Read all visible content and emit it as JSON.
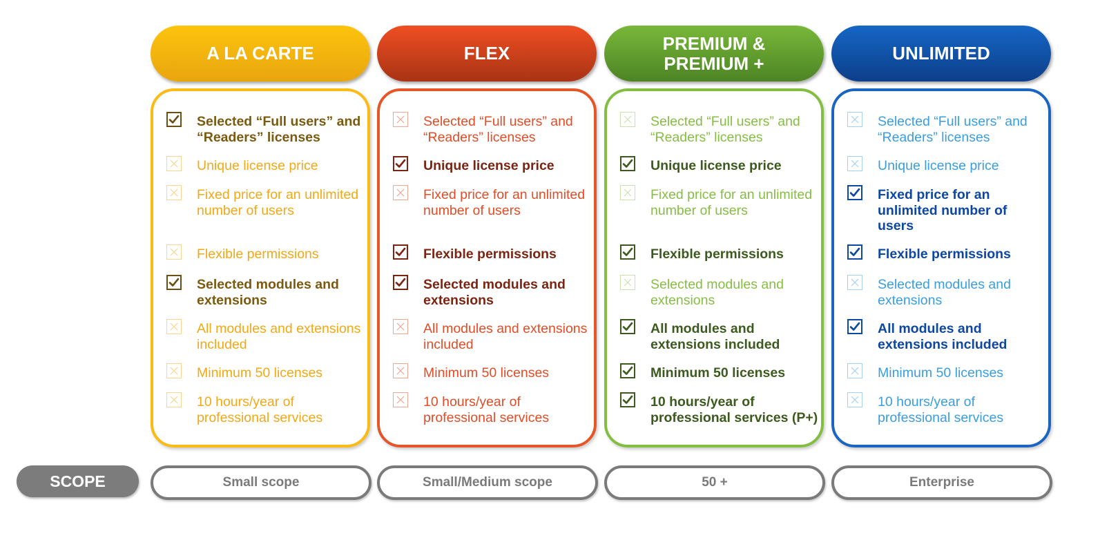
{
  "scope_label": "SCOPE",
  "plans": [
    {
      "title": "A LA CARTE",
      "scope": "Small scope",
      "colors": {
        "header_top": "#fdc40e",
        "header_bottom": "#e8a50e",
        "border": "#fbba14",
        "on_text": "#7a5a10",
        "on_box": "#6b4f12",
        "off_text": "#f3a815",
        "off_box": "#f7c86a"
      },
      "features": [
        {
          "text": "Selected “Full users” and “Readers” licenses",
          "included": true
        },
        {
          "text": "Unique license price",
          "included": false
        },
        {
          "text": "Fixed price for an unlimited number of users",
          "included": false
        },
        {
          "text": "Flexible permissions",
          "included": false
        },
        {
          "text": "Selected modules and extensions",
          "included": true
        },
        {
          "text": "All modules and extensions included",
          "included": false
        },
        {
          "text": "Minimum 50 licenses",
          "included": false
        },
        {
          "text": "10 hours/year of professional services",
          "included": false
        }
      ]
    },
    {
      "title": "FLEX",
      "scope": "Small/Medium scope",
      "colors": {
        "header_top": "#f04e23",
        "header_bottom": "#a83314",
        "border": "#e65527",
        "on_text": "#7b2412",
        "on_box": "#7b2412",
        "off_text": "#e24c26",
        "off_box": "#ee8a6e"
      },
      "features": [
        {
          "text": "Selected “Full users” and “Readers” licenses",
          "included": false
        },
        {
          "text": "Unique license price",
          "included": true
        },
        {
          "text": "Fixed price for an unlimited number of users",
          "included": false
        },
        {
          "text": "Flexible permissions",
          "included": true
        },
        {
          "text": "Selected modules and extensions",
          "included": true
        },
        {
          "text": "All modules and extensions included",
          "included": false
        },
        {
          "text": "Minimum 50 licenses",
          "included": false
        },
        {
          "text": "10 hours/year of professional services",
          "included": false
        }
      ]
    },
    {
      "title": "PREMIUM &\nPREMIUM +",
      "scope": "50 +",
      "colors": {
        "header_top": "#79b83a",
        "header_bottom": "#4c8424",
        "border": "#84be41",
        "on_text": "#3d5a1e",
        "on_box": "#3d5a1e",
        "off_text": "#86bd45",
        "off_box": "#b6d994"
      },
      "features": [
        {
          "text": "Selected “Full users” and “Readers” licenses",
          "included": false
        },
        {
          "text": "Unique license price",
          "included": true
        },
        {
          "text": "Fixed price for an unlimited number of users",
          "included": false
        },
        {
          "text": "Flexible permissions",
          "included": true
        },
        {
          "text": "Selected modules and extensions",
          "included": false
        },
        {
          "text": "All modules and extensions included",
          "included": true
        },
        {
          "text": "Minimum 50 licenses",
          "included": true
        },
        {
          "text": "10 hours/year of professional services (P+)",
          "included": true
        }
      ]
    },
    {
      "title": "UNLIMITED",
      "scope": "Enterprise",
      "colors": {
        "header_top": "#1566c5",
        "header_bottom": "#0d3f8a",
        "border": "#1a64c2",
        "on_text": "#0d47a1",
        "on_box": "#0d47a1",
        "off_text": "#3a9de0",
        "off_box": "#86c1ee"
      },
      "features": [
        {
          "text": "Selected “Full users” and “Readers” licenses",
          "included": false
        },
        {
          "text": "Unique license price",
          "included": false
        },
        {
          "text": "Fixed price for an unlimited number of users",
          "included": true
        },
        {
          "text": "Flexible permissions",
          "included": true
        },
        {
          "text": "Selected modules and extensions",
          "included": false
        },
        {
          "text": "All modules and extensions included",
          "included": true
        },
        {
          "text": "Minimum 50 licenses",
          "included": false
        },
        {
          "text": "10 hours/year of professional services",
          "included": false
        }
      ]
    }
  ]
}
